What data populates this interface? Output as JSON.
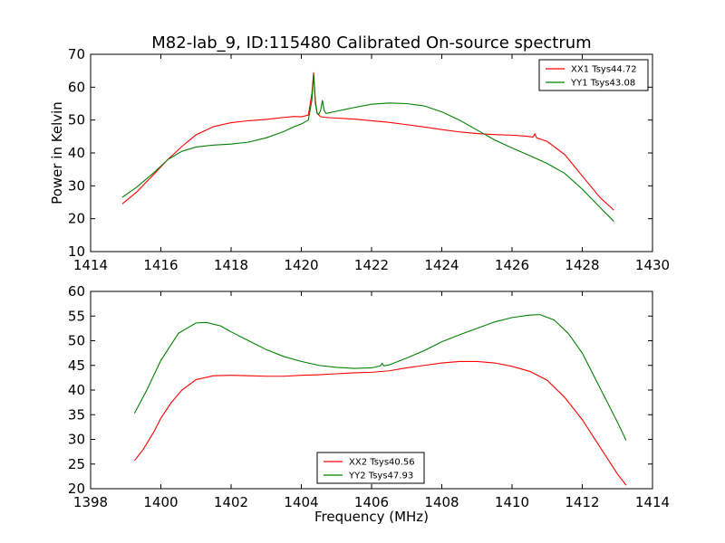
{
  "title": "M82-lab_9, ID:115480 Calibrated On-source spectrum",
  "colors": {
    "xx": "#ff0000",
    "yy": "#008000",
    "axis": "#000000",
    "background": "#ffffff"
  },
  "chart_data": [
    {
      "type": "line",
      "ylabel": "Power in Kelvin",
      "xlabel": "",
      "xlim": [
        1414,
        1430
      ],
      "ylim": [
        10,
        70
      ],
      "xticks": [
        "1414",
        "1416",
        "1418",
        "1420",
        "1422",
        "1424",
        "1426",
        "1428",
        "1430"
      ],
      "yticks": [
        "10",
        "20",
        "30",
        "40",
        "50",
        "60",
        "70"
      ],
      "legend_position": "top-right",
      "series": [
        {
          "name": "XX1 Tsys44.72",
          "color": "#ff0000",
          "points": [
            [
              1414.9,
              24.5
            ],
            [
              1415.3,
              28
            ],
            [
              1415.8,
              33.5
            ],
            [
              1416.2,
              38
            ],
            [
              1416.6,
              42
            ],
            [
              1417.0,
              45.5
            ],
            [
              1417.5,
              48
            ],
            [
              1418.0,
              49.2
            ],
            [
              1418.5,
              49.8
            ],
            [
              1419.0,
              50.2
            ],
            [
              1419.5,
              50.8
            ],
            [
              1419.8,
              51.1
            ],
            [
              1420.0,
              51.0
            ],
            [
              1420.2,
              51.5
            ],
            [
              1420.3,
              58
            ],
            [
              1420.35,
              64.5
            ],
            [
              1420.4,
              56
            ],
            [
              1420.45,
              52
            ],
            [
              1420.55,
              51
            ],
            [
              1420.7,
              50.8
            ],
            [
              1421.0,
              50.6
            ],
            [
              1421.5,
              50.3
            ],
            [
              1422.0,
              49.8
            ],
            [
              1422.5,
              49.3
            ],
            [
              1423.0,
              48.6
            ],
            [
              1423.5,
              47.9
            ],
            [
              1424.0,
              47.1
            ],
            [
              1424.5,
              46.4
            ],
            [
              1425.0,
              45.9
            ],
            [
              1425.5,
              45.6
            ],
            [
              1426.0,
              45.4
            ],
            [
              1426.4,
              45.1
            ],
            [
              1426.6,
              44.8
            ],
            [
              1426.65,
              45.8
            ],
            [
              1426.7,
              44.6
            ],
            [
              1427.0,
              43.5
            ],
            [
              1427.5,
              39.5
            ],
            [
              1428.0,
              33
            ],
            [
              1428.5,
              26.5
            ],
            [
              1428.9,
              22.6
            ]
          ]
        },
        {
          "name": "YY1 Tsys43.08",
          "color": "#008000",
          "points": [
            [
              1414.9,
              26.5
            ],
            [
              1415.3,
              29.5
            ],
            [
              1415.8,
              34
            ],
            [
              1416.2,
              38
            ],
            [
              1416.6,
              40.5
            ],
            [
              1417.0,
              41.8
            ],
            [
              1417.5,
              42.4
            ],
            [
              1418.0,
              42.7
            ],
            [
              1418.5,
              43.3
            ],
            [
              1419.0,
              44.6
            ],
            [
              1419.5,
              46.5
            ],
            [
              1419.8,
              48
            ],
            [
              1420.0,
              48.8
            ],
            [
              1420.2,
              50
            ],
            [
              1420.3,
              56
            ],
            [
              1420.35,
              64
            ],
            [
              1420.4,
              55
            ],
            [
              1420.45,
              52
            ],
            [
              1420.5,
              51.8
            ],
            [
              1420.55,
              53
            ],
            [
              1420.6,
              56
            ],
            [
              1420.65,
              53
            ],
            [
              1420.7,
              52
            ],
            [
              1421.0,
              52.7
            ],
            [
              1421.5,
              53.8
            ],
            [
              1422.0,
              54.8
            ],
            [
              1422.5,
              55.2
            ],
            [
              1423.0,
              55
            ],
            [
              1423.5,
              54.3
            ],
            [
              1424.0,
              52.5
            ],
            [
              1424.5,
              50
            ],
            [
              1425.0,
              47
            ],
            [
              1425.5,
              44
            ],
            [
              1426.0,
              41.5
            ],
            [
              1426.5,
              39.2
            ],
            [
              1427.0,
              36.8
            ],
            [
              1427.5,
              33.8
            ],
            [
              1428.0,
              29
            ],
            [
              1428.5,
              23.5
            ],
            [
              1428.9,
              19.2
            ]
          ]
        }
      ]
    },
    {
      "type": "line",
      "ylabel": "",
      "xlabel": "Frequency (MHz)",
      "xlim": [
        1398,
        1414
      ],
      "ylim": [
        20,
        60
      ],
      "xticks": [
        "1398",
        "1400",
        "1402",
        "1404",
        "1406",
        "1408",
        "1410",
        "1412",
        "1414"
      ],
      "yticks": [
        "20",
        "25",
        "30",
        "35",
        "40",
        "45",
        "50",
        "55",
        "60"
      ],
      "legend_position": "lower-center",
      "series": [
        {
          "name": "XX2 Tsys40.56",
          "color": "#ff0000",
          "points": [
            [
              1399.25,
              25.7
            ],
            [
              1399.5,
              28
            ],
            [
              1399.8,
              31.5
            ],
            [
              1400.0,
              34.3
            ],
            [
              1400.3,
              37.5
            ],
            [
              1400.6,
              40
            ],
            [
              1401.0,
              42.1
            ],
            [
              1401.5,
              42.9
            ],
            [
              1402.0,
              43
            ],
            [
              1402.5,
              42.9
            ],
            [
              1403.0,
              42.8
            ],
            [
              1403.5,
              42.8
            ],
            [
              1404.0,
              43
            ],
            [
              1404.5,
              43.1
            ],
            [
              1405.0,
              43.3
            ],
            [
              1405.5,
              43.5
            ],
            [
              1406.0,
              43.6
            ],
            [
              1406.5,
              43.9
            ],
            [
              1407.0,
              44.5
            ],
            [
              1407.5,
              45
            ],
            [
              1408.0,
              45.5
            ],
            [
              1408.5,
              45.8
            ],
            [
              1409.0,
              45.8
            ],
            [
              1409.5,
              45.5
            ],
            [
              1410.0,
              44.8
            ],
            [
              1410.5,
              43.8
            ],
            [
              1411.0,
              42
            ],
            [
              1411.5,
              38.5
            ],
            [
              1412.0,
              34
            ],
            [
              1412.5,
              28.5
            ],
            [
              1413.0,
              23
            ],
            [
              1413.25,
              20.7
            ]
          ]
        },
        {
          "name": "YY2 Tsys47.93",
          "color": "#008000",
          "points": [
            [
              1399.25,
              35.3
            ],
            [
              1399.6,
              40
            ],
            [
              1400.0,
              46
            ],
            [
              1400.5,
              51.5
            ],
            [
              1401.0,
              53.6
            ],
            [
              1401.3,
              53.7
            ],
            [
              1401.7,
              53
            ],
            [
              1402.0,
              51.8
            ],
            [
              1402.5,
              50
            ],
            [
              1403.0,
              48.2
            ],
            [
              1403.5,
              46.8
            ],
            [
              1404.0,
              45.8
            ],
            [
              1404.5,
              45
            ],
            [
              1405.0,
              44.6
            ],
            [
              1405.5,
              44.4
            ],
            [
              1406.0,
              44.5
            ],
            [
              1406.25,
              44.9
            ],
            [
              1406.3,
              45.4
            ],
            [
              1406.35,
              44.9
            ],
            [
              1406.5,
              45.1
            ],
            [
              1407.0,
              46.5
            ],
            [
              1407.5,
              48
            ],
            [
              1408.0,
              49.8
            ],
            [
              1408.5,
              51.2
            ],
            [
              1409.0,
              52.5
            ],
            [
              1409.5,
              53.8
            ],
            [
              1410.0,
              54.7
            ],
            [
              1410.5,
              55.2
            ],
            [
              1410.8,
              55.3
            ],
            [
              1411.2,
              54.2
            ],
            [
              1411.6,
              51.5
            ],
            [
              1412.0,
              47.5
            ],
            [
              1412.5,
              40.5
            ],
            [
              1413.0,
              33.5
            ],
            [
              1413.25,
              29.8
            ]
          ]
        }
      ]
    }
  ]
}
